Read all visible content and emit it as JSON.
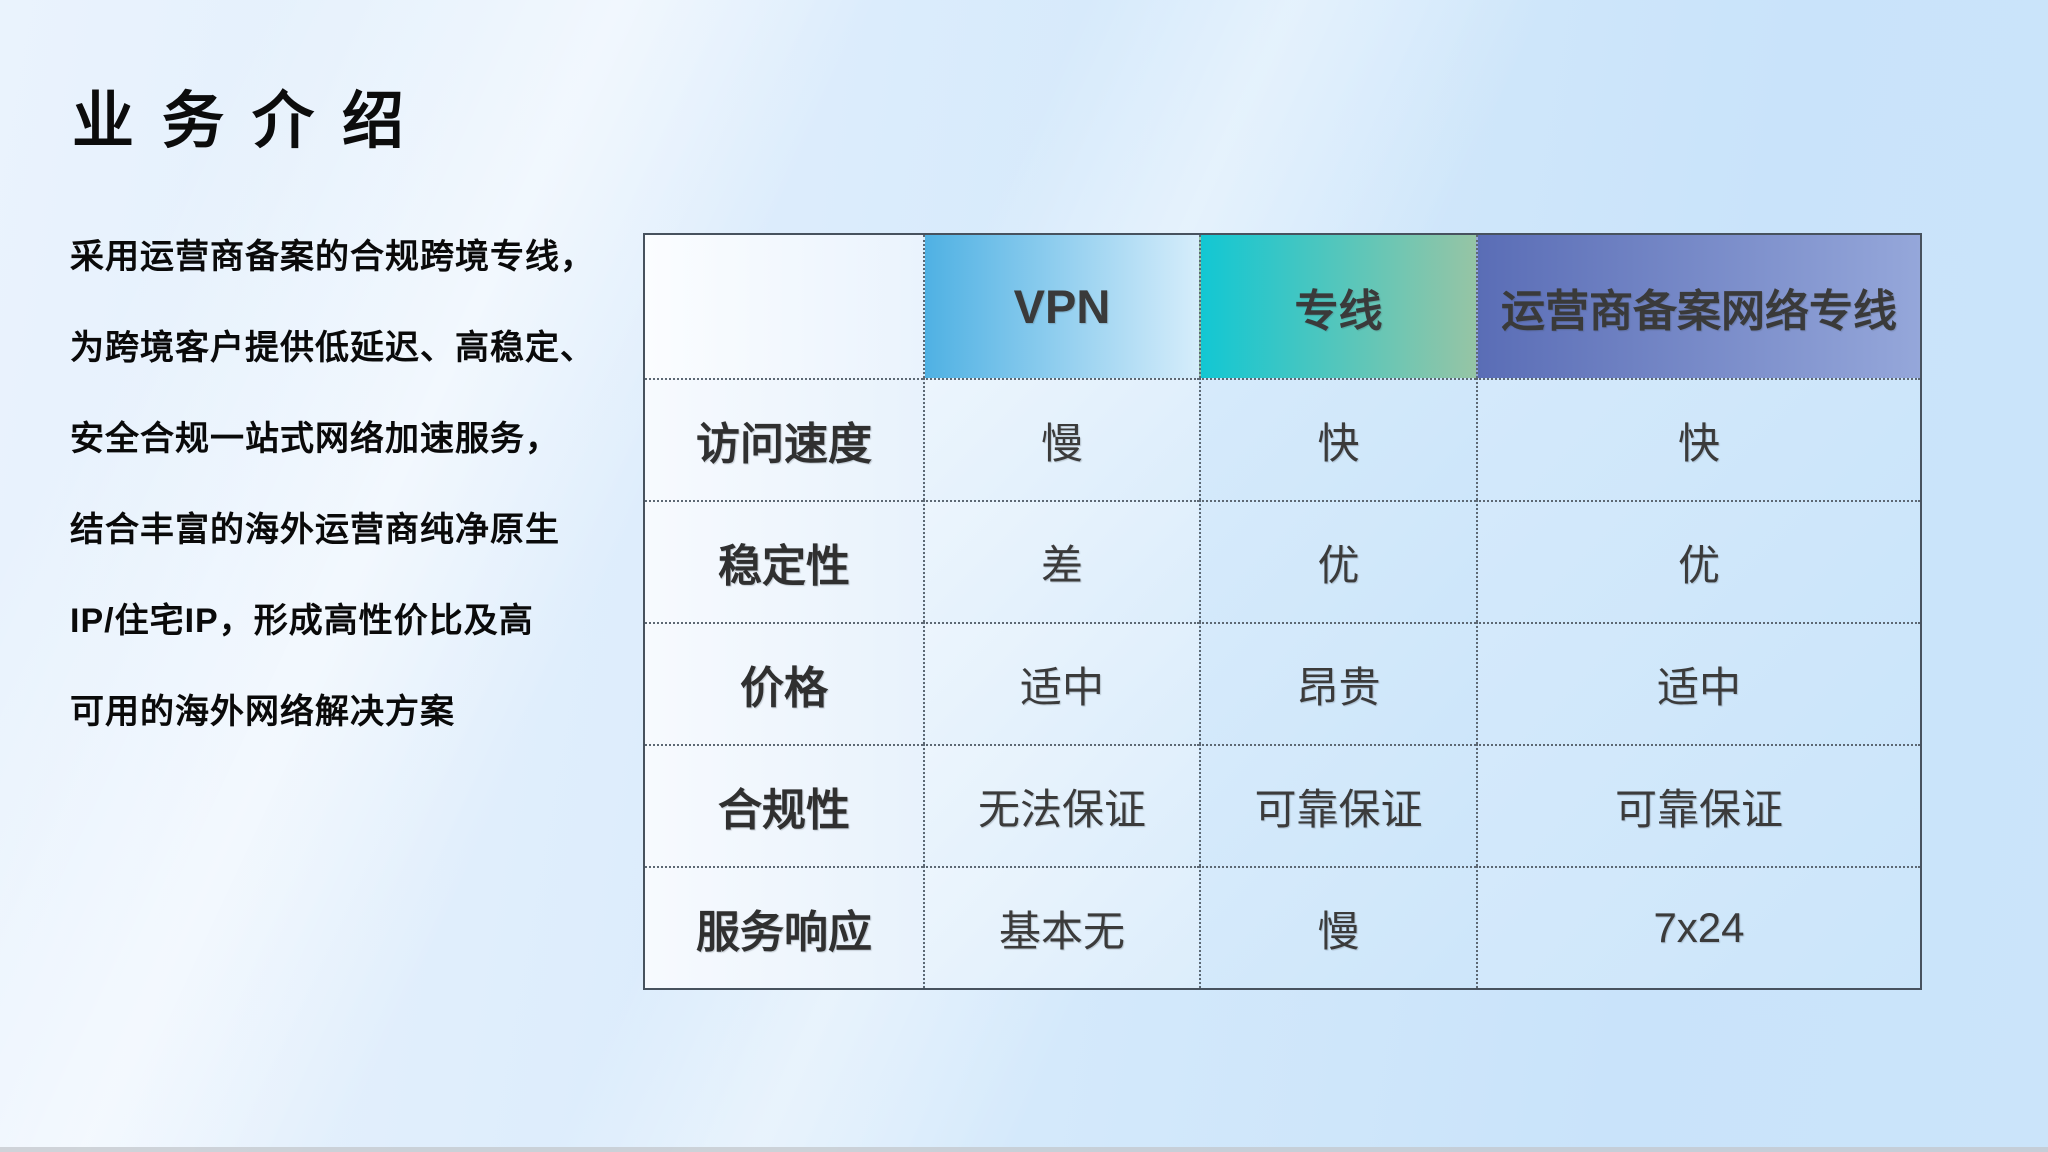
{
  "slide": {
    "title": "业务介绍",
    "description_lines": [
      "采用运营商备案的合规跨境专线，",
      "为跨境客户提供低延迟、高稳定、",
      "安全合规一站式网络加速服务，",
      "结合丰富的海外运营商纯净原生",
      "IP/住宅IP，形成高性价比及高",
      "可用的海外网络解决方案"
    ]
  },
  "table": {
    "header": {
      "columns": [
        "VPN",
        "专线",
        "运营商备案网络专线"
      ]
    },
    "rows": [
      {
        "label": "访问速度",
        "values": [
          "慢",
          "快",
          "快"
        ]
      },
      {
        "label": "稳定性",
        "values": [
          "差",
          "优",
          "优"
        ]
      },
      {
        "label": "价格",
        "values": [
          "适中",
          "昂贵",
          "适中"
        ]
      },
      {
        "label": "合规性",
        "values": [
          "无法保证",
          "可靠保证",
          "可靠保证"
        ]
      },
      {
        "label": "服务响应",
        "values": [
          "基本无",
          "慢",
          "7x24"
        ]
      }
    ]
  },
  "colors": {
    "background_start": "#eaf3fd",
    "background_end": "#c9e3fa",
    "header_vpn_start": "#4fb1e3",
    "header_vpn_end": "#d6edfb",
    "header_line_start": "#12c7d3",
    "header_line_end": "#96c5a5",
    "header_isp_start": "#5a6db6",
    "header_isp_end": "#95a7da",
    "table_border": "#47525e",
    "text_dark": "#0a0a0a",
    "table_text": "#3b3b3b"
  }
}
